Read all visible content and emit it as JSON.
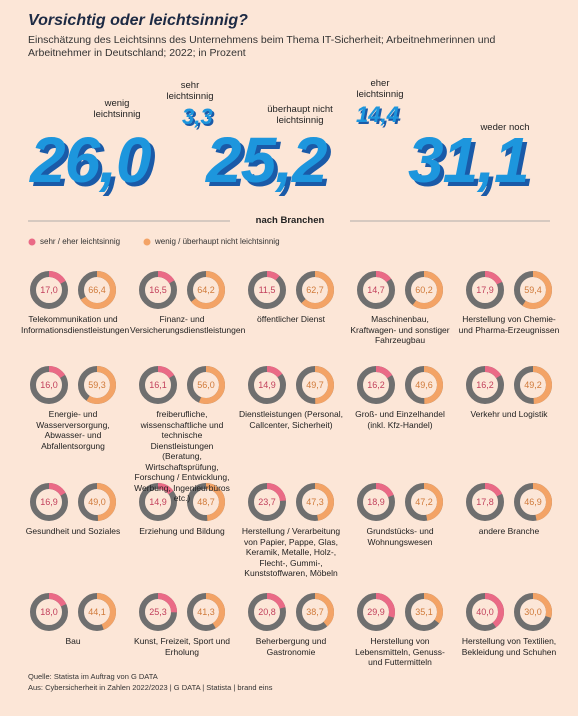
{
  "header": {
    "title": "Vorsichtig oder leichtsinnig?",
    "subtitle": "Einschätzung des Leichtsinns des Unternehmens beim Thema IT-Sicherheit; Arbeitnehmerinnen und Arbeitnehmer in Deutschland; 2022; in Prozent"
  },
  "overview": [
    {
      "label": "wenig leichtsinnig",
      "value": "26,0"
    },
    {
      "label": "sehr leichtsinnig",
      "value": "3,3"
    },
    {
      "label": "überhaupt nicht leichtsinnig",
      "value": "25,2"
    },
    {
      "label": "eher leichtsinnig",
      "value": "14,4"
    },
    {
      "label": "weder noch",
      "value": "31,1"
    }
  ],
  "section": {
    "title": "nach Branchen",
    "legend": [
      {
        "name": "sehr / eher leichtsinnig",
        "color": "#ea6a86"
      },
      {
        "name": "wenig / überhaupt nicht leichtsinnig",
        "color": "#f3a366"
      }
    ],
    "ring_color": "#6f6f6f"
  },
  "branches": [
    {
      "label": "Telekommunikation und Informationsdienstleistungen",
      "values": [
        17.0,
        66.4
      ],
      "value_labels": [
        "17,0",
        "66,4"
      ]
    },
    {
      "label": "Finanz- und Versicherungsdienstleistungen",
      "values": [
        16.5,
        64.2
      ],
      "value_labels": [
        "16,5",
        "64,2"
      ]
    },
    {
      "label": "öffentlicher Dienst",
      "values": [
        11.5,
        62.7
      ],
      "value_labels": [
        "11,5",
        "62,7"
      ]
    },
    {
      "label": "Maschinenbau, Kraftwagen- und sonstiger Fahrzeugbau",
      "values": [
        14.7,
        60.2
      ],
      "value_labels": [
        "14,7",
        "60,2"
      ]
    },
    {
      "label": "Herstellung von Chemie- und Pharma-Erzeugnissen",
      "values": [
        17.9,
        59.4
      ],
      "value_labels": [
        "17,9",
        "59,4"
      ]
    },
    {
      "label": "Energie- und Wasserversorgung, Abwasser- und Abfallentsorgung",
      "values": [
        16.0,
        59.3
      ],
      "value_labels": [
        "16,0",
        "59,3"
      ]
    },
    {
      "label": "freiberufliche, wissenschaftliche und technische Dienstleistungen (Beratung, Wirtschaftsprüfung, Forschung / Entwicklung, Werbung, Ingenieurbüros etc.)",
      "values": [
        16.1,
        56.0
      ],
      "value_labels": [
        "16,1",
        "56,0"
      ]
    },
    {
      "label": "Dienstleistungen (Personal, Callcenter, Sicherheit)",
      "values": [
        14.9,
        49.7
      ],
      "value_labels": [
        "14,9",
        "49,7"
      ]
    },
    {
      "label": "Groß- und Einzelhandel (inkl. Kfz-Handel)",
      "values": [
        16.2,
        49.6
      ],
      "value_labels": [
        "16,2",
        "49,6"
      ]
    },
    {
      "label": "Verkehr und Logistik",
      "values": [
        16.2,
        49.2
      ],
      "value_labels": [
        "16,2",
        "49,2"
      ]
    },
    {
      "label": "Gesundheit und Soziales",
      "values": [
        16.9,
        49.0
      ],
      "value_labels": [
        "16,9",
        "49,0"
      ]
    },
    {
      "label": "Erziehung und Bildung",
      "values": [
        14.9,
        48.7
      ],
      "value_labels": [
        "14,9",
        "48,7"
      ]
    },
    {
      "label": "Herstellung / Verarbeitung von Papier, Pappe, Glas, Keramik, Metalle, Holz-, Flecht-, Gummi-, Kunststoffwaren, Möbeln",
      "values": [
        23.7,
        47.3
      ],
      "value_labels": [
        "23,7",
        "47,3"
      ]
    },
    {
      "label": "Grundstücks- und Wohnungswesen",
      "values": [
        18.9,
        47.2
      ],
      "value_labels": [
        "18,9",
        "47,2"
      ]
    },
    {
      "label": "andere Branche",
      "values": [
        17.8,
        46.9
      ],
      "value_labels": [
        "17,8",
        "46,9"
      ]
    },
    {
      "label": "Bau",
      "values": [
        18.0,
        44.1
      ],
      "value_labels": [
        "18,0",
        "44,1"
      ]
    },
    {
      "label": "Kunst, Freizeit, Sport und Erholung",
      "values": [
        25.3,
        41.3
      ],
      "value_labels": [
        "25,3",
        "41,3"
      ]
    },
    {
      "label": "Beherbergung und Gastronomie",
      "values": [
        20.8,
        38.7
      ],
      "value_labels": [
        "20,8",
        "38,7"
      ]
    },
    {
      "label": "Herstellung von Lebensmitteln, Genuss- und Futtermitteln",
      "values": [
        29.9,
        35.1
      ],
      "value_labels": [
        "29,9",
        "35,1"
      ]
    },
    {
      "label": "Herstellung von Textilien, Bekleidung und Schuhen",
      "values": [
        40.0,
        30.0
      ],
      "value_labels": [
        "40,0",
        "30,0"
      ]
    }
  ],
  "footer": {
    "source": "Quelle: Statista im Auftrag von G DATA",
    "origin": "Aus: Cybersicherheit in Zahlen 2022/2023 | G DATA | Statista | brand eins"
  }
}
